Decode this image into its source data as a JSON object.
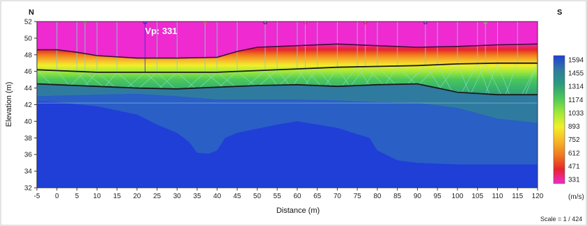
{
  "chart_data": {
    "type": "heatmap",
    "title": "",
    "xlabel": "Distance (m)",
    "ylabel": "Elevation (m)",
    "xlim": [
      -5,
      120
    ],
    "ylim": [
      32,
      52
    ],
    "x_ticks": [
      -5,
      0,
      5,
      10,
      15,
      20,
      25,
      30,
      35,
      40,
      45,
      50,
      55,
      60,
      65,
      70,
      75,
      80,
      85,
      90,
      95,
      100,
      105,
      110,
      115,
      120
    ],
    "y_ticks": [
      32,
      34,
      36,
      38,
      40,
      42,
      44,
      46,
      48,
      50,
      52
    ],
    "direction_left": "N",
    "direction_right": "S",
    "annotation": "Vp: 331",
    "annotation_position": [
      22,
      50.5
    ],
    "legend": {
      "values": [
        1594,
        1455,
        1314,
        1174,
        1033,
        893,
        752,
        612,
        471,
        331
      ],
      "colors": [
        "#1f3fd6",
        "#2f7ba0",
        "#2e9a7d",
        "#4cc85a",
        "#9ee83a",
        "#f2ef2a",
        "#f7b72a",
        "#f07a1e",
        "#e8242c",
        "#ee2ad0"
      ],
      "unit": "(m/s)"
    },
    "scale_text": "Scale = 1 / 424",
    "layers": [
      {
        "name": "",
        "velocity": 331,
        "color": "#ee2ad0"
      },
      {
        "name": "",
        "velocity": 893,
        "color": "#9ee83a"
      },
      {
        "name": "",
        "velocity": 1314,
        "color": "#2e9a7d"
      },
      {
        "name": "",
        "velocity": 1594,
        "color": "#1f3fd6"
      }
    ],
    "boundary_upper": {
      "x": [
        -5,
        0,
        5,
        10,
        20,
        30,
        40,
        45,
        50,
        60,
        70,
        80,
        90,
        100,
        110,
        120
      ],
      "y": [
        48.6,
        48.6,
        48.3,
        47.9,
        47.6,
        47.6,
        47.7,
        48.4,
        48.9,
        49.1,
        49.3,
        49.1,
        48.9,
        49.0,
        49.2,
        49.3
      ]
    },
    "boundary_middle": {
      "x": [
        -5,
        0,
        10,
        20,
        30,
        40,
        50,
        60,
        70,
        80,
        90,
        100,
        110,
        120
      ],
      "y": [
        46.2,
        46.1,
        45.9,
        45.9,
        45.9,
        45.9,
        46.1,
        46.3,
        46.5,
        46.6,
        46.7,
        46.9,
        47.0,
        47.0
      ]
    },
    "boundary_lower": {
      "x": [
        -5,
        0,
        10,
        20,
        30,
        40,
        50,
        60,
        70,
        80,
        90,
        100,
        110,
        120
      ],
      "y": [
        44.5,
        44.4,
        44.2,
        44.0,
        43.9,
        44.1,
        44.3,
        44.4,
        44.2,
        44.4,
        44.5,
        43.5,
        43.2,
        43.2
      ]
    },
    "contour_dark_deep": {
      "x": [
        -5,
        0,
        10,
        20,
        25,
        30,
        33,
        35,
        38,
        40,
        42,
        45,
        55,
        60,
        70,
        78,
        80,
        85,
        90,
        100,
        110,
        120
      ],
      "y": [
        42.4,
        42.3,
        41.8,
        40.8,
        39.6,
        38.6,
        37.5,
        36.2,
        36.1,
        36.5,
        38.0,
        38.6,
        39.6,
        40.0,
        39.2,
        38.0,
        36.5,
        35.3,
        35.0,
        34.8,
        34.8,
        34.8
      ]
    },
    "contour_mid": {
      "x": [
        -5,
        10,
        20,
        30,
        40,
        50,
        60,
        70,
        80,
        90,
        100,
        110,
        120
      ],
      "y": [
        43.0,
        43.2,
        43.3,
        43.0,
        42.6,
        42.6,
        42.6,
        42.5,
        42.3,
        42.2,
        41.6,
        40.3,
        39.8
      ]
    },
    "sources": [
      -5,
      0,
      5,
      7,
      10,
      15,
      22,
      25,
      30,
      37,
      40,
      45,
      52,
      55,
      60,
      62,
      65,
      70,
      75,
      77,
      80,
      85,
      92,
      95,
      100,
      105,
      107,
      110,
      115,
      120
    ]
  }
}
